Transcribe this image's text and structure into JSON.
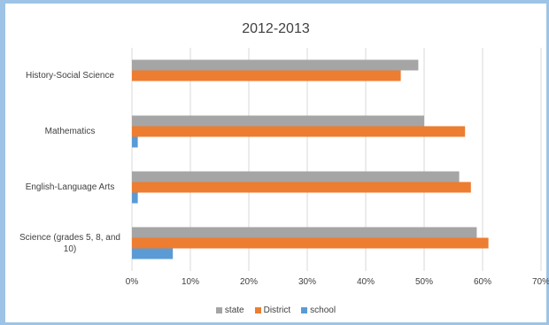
{
  "chart_data": {
    "type": "bar",
    "orientation": "horizontal",
    "title": "2012-2013",
    "categories": [
      "History-Social Science",
      "Mathematics",
      "English-Language Arts",
      "Science (grades 5, 8, and 10)"
    ],
    "series": [
      {
        "name": "state",
        "color": "#a5a5a5",
        "values": [
          49,
          50,
          56,
          59
        ]
      },
      {
        "name": "District",
        "color": "#ed7d31",
        "values": [
          46,
          57,
          58,
          61
        ]
      },
      {
        "name": "school",
        "color": "#5b9bd5",
        "values": [
          null,
          1,
          1,
          7
        ]
      }
    ],
    "xlim": [
      0,
      70
    ],
    "x_ticks": [
      "0%",
      "10%",
      "20%",
      "30%",
      "40%",
      "50%",
      "60%",
      "70%"
    ],
    "grid": true,
    "legend": "bottom"
  }
}
